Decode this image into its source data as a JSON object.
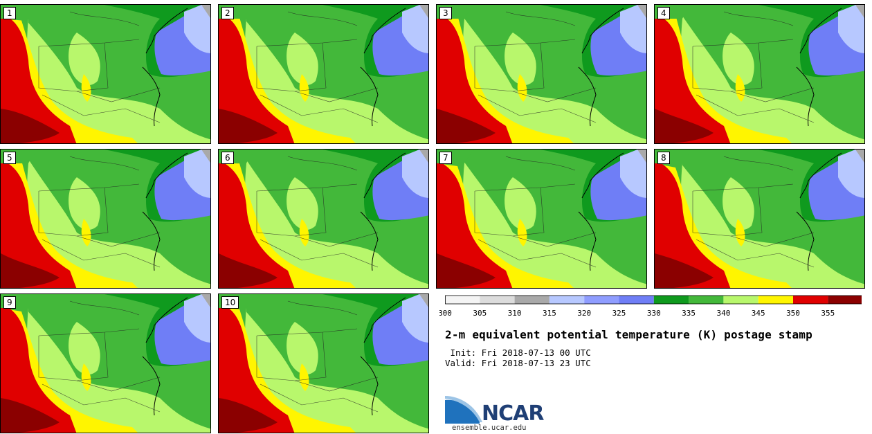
{
  "panels": [
    {
      "label": "1"
    },
    {
      "label": "2"
    },
    {
      "label": "3"
    },
    {
      "label": "4"
    },
    {
      "label": "5"
    },
    {
      "label": "6"
    },
    {
      "label": "7"
    },
    {
      "label": "8"
    },
    {
      "label": "9"
    },
    {
      "label": "10"
    }
  ],
  "colorbar": {
    "ticks": [
      "300",
      "305",
      "310",
      "315",
      "320",
      "325",
      "330",
      "335",
      "340",
      "345",
      "350",
      "355"
    ],
    "colors": [
      "#f4f4f4",
      "#dcdcdc",
      "#a9a9a9",
      "#b7c8ff",
      "#8f9dff",
      "#6f7ef6",
      "#0f9a1e",
      "#43b83a",
      "#b8f76c",
      "#fff500",
      "#e00000",
      "#8b0000"
    ]
  },
  "title": "2-m equivalent potential temperature (K) postage stamp",
  "init": " Init: Fri 2018-07-13 00 UTC",
  "valid": "Valid: Fri 2018-07-13 23 UTC",
  "logo": {
    "text": "NCAR",
    "color": "#1f3f75",
    "swoosh_color": "#2a7ec2"
  },
  "site": "ensemble.ucar.edu"
}
